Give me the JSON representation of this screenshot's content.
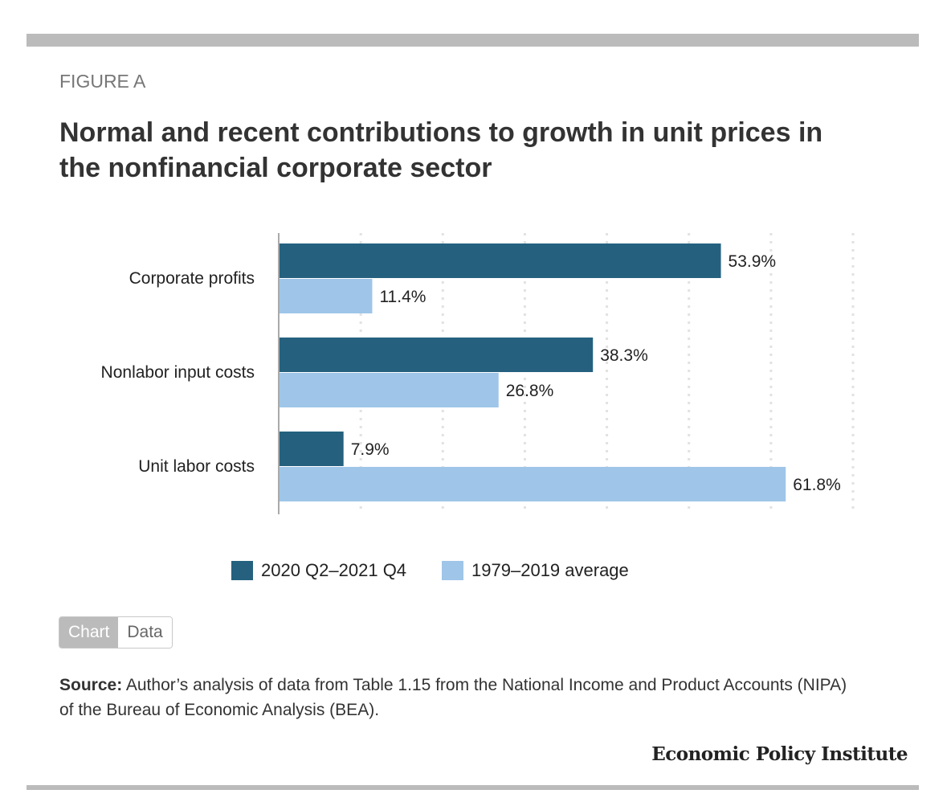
{
  "figure_label": "FIGURE A",
  "title": "Normal and recent contributions to growth in unit prices in the nonfinancial corporate sector",
  "chart_data": {
    "type": "bar",
    "orientation": "horizontal",
    "categories": [
      "Corporate profits",
      "Nonlabor input costs",
      "Unit labor costs"
    ],
    "series": [
      {
        "name": "2020 Q2–2021 Q4",
        "values": [
          53.9,
          38.3,
          7.9
        ],
        "color": "#25617f"
      },
      {
        "name": "1979–2019 average",
        "values": [
          11.4,
          26.8,
          61.8
        ],
        "color": "#9fc5e8"
      }
    ],
    "data_labels": [
      [
        "53.9%",
        "38.3%",
        "7.9%"
      ],
      [
        "11.4%",
        "26.8%",
        "61.8%"
      ]
    ],
    "xlim": [
      0,
      70
    ],
    "grid": true,
    "legend_position": "bottom"
  },
  "toggle": {
    "chart": "Chart",
    "data": "Data"
  },
  "source": {
    "label": "Source:",
    "text": " Author’s analysis of data from Table 1.15 from the National Income and Product Accounts (NIPA) of the Bureau of Economic Analysis (BEA)."
  },
  "logo": "Economic Policy Institute"
}
